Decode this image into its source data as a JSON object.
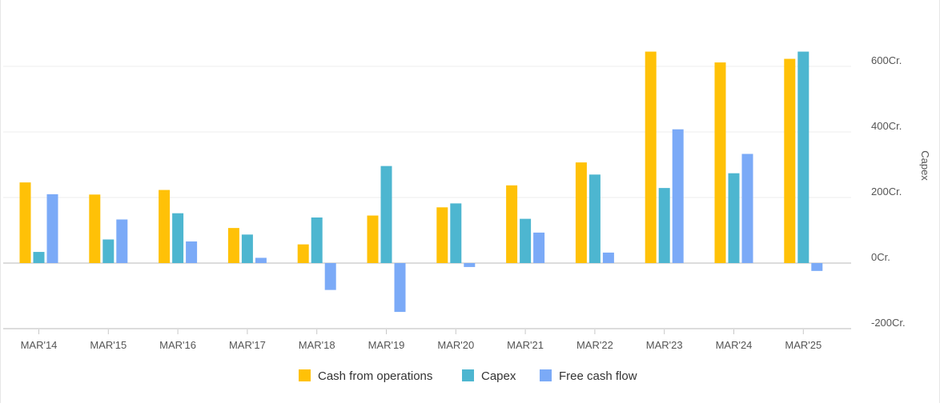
{
  "chart_data": {
    "type": "bar",
    "categories": [
      "MAR'14",
      "MAR'15",
      "MAR'16",
      "MAR'17",
      "MAR'18",
      "MAR'19",
      "MAR'20",
      "MAR'21",
      "MAR'22",
      "MAR'23",
      "MAR'24",
      "MAR'25"
    ],
    "series": [
      {
        "name": "Cash from operations",
        "color": "#FFC107",
        "values": [
          246,
          209,
          223,
          107,
          57,
          145,
          170,
          237,
          307,
          645,
          612,
          623
        ]
      },
      {
        "name": "Capex",
        "color": "#4DB6D0",
        "values": [
          34,
          72,
          152,
          87,
          139,
          296,
          182,
          135,
          270,
          229,
          274,
          645
        ]
      },
      {
        "name": "Free cash flow",
        "color": "#7BAAF7",
        "values": [
          210,
          133,
          66,
          16,
          -82,
          -149,
          -12,
          93,
          32,
          408,
          333,
          -24
        ]
      }
    ],
    "ylabel": "Capex",
    "y_ticks": [
      "600Cr.",
      "400Cr.",
      "200Cr.",
      "0Cr.",
      "-200Cr."
    ],
    "y_tick_values": [
      600,
      400,
      200,
      0,
      -200
    ],
    "ylim": [
      -200,
      645
    ],
    "grid": true,
    "legend_position": "bottom"
  }
}
